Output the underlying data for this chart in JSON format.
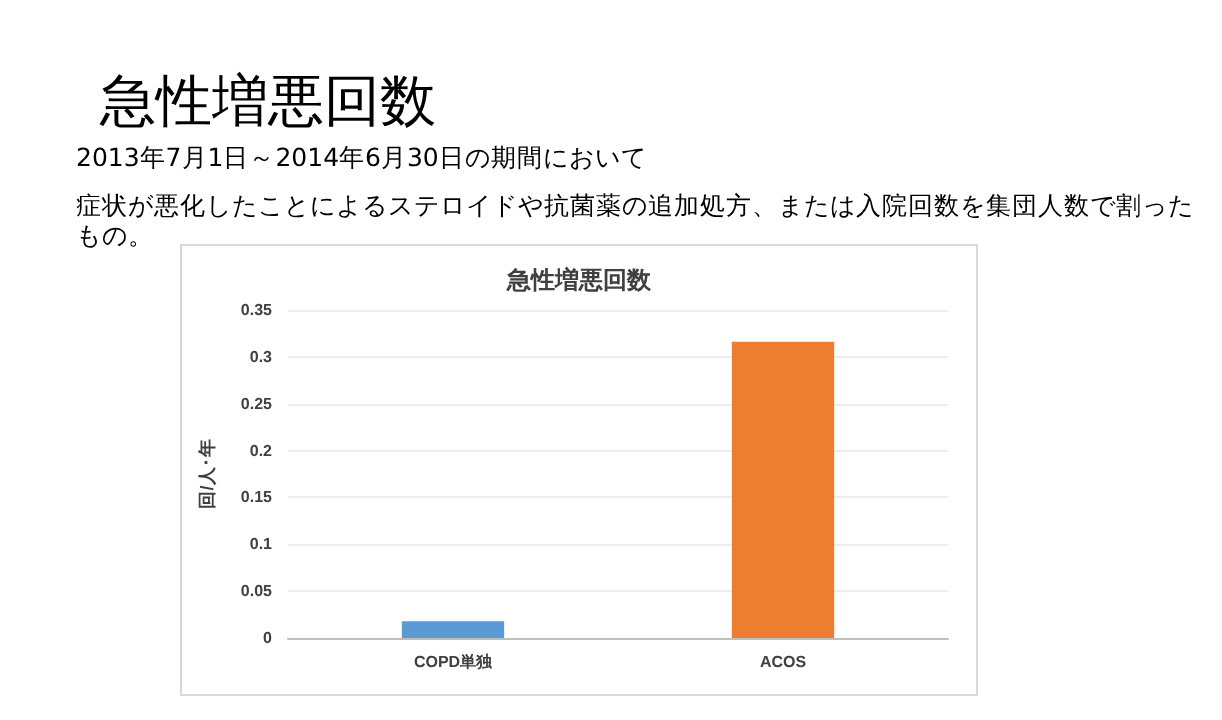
{
  "chart_data": {
    "type": "bar",
    "title": "急性増悪回数",
    "annotations": [
      "急性増悪回数",
      "2013年7月1日～2014年6月30日の期間において",
      "症状が悪化したことによるステロイドや抗菌薬の追加処方、または入院回数を集団人数で割ったもの。"
    ],
    "ylabel": "回/人･年",
    "categories": [
      "COPD単独",
      "ACOS"
    ],
    "values": [
      0.018,
      0.316
    ],
    "colors": [
      "#5b9bd5",
      "#ed7d31"
    ],
    "ylim": [
      0,
      0.35
    ],
    "yticks": [
      0,
      0.05,
      0.1,
      0.15,
      0.2,
      0.25,
      0.3,
      0.35
    ],
    "grid": "y"
  }
}
